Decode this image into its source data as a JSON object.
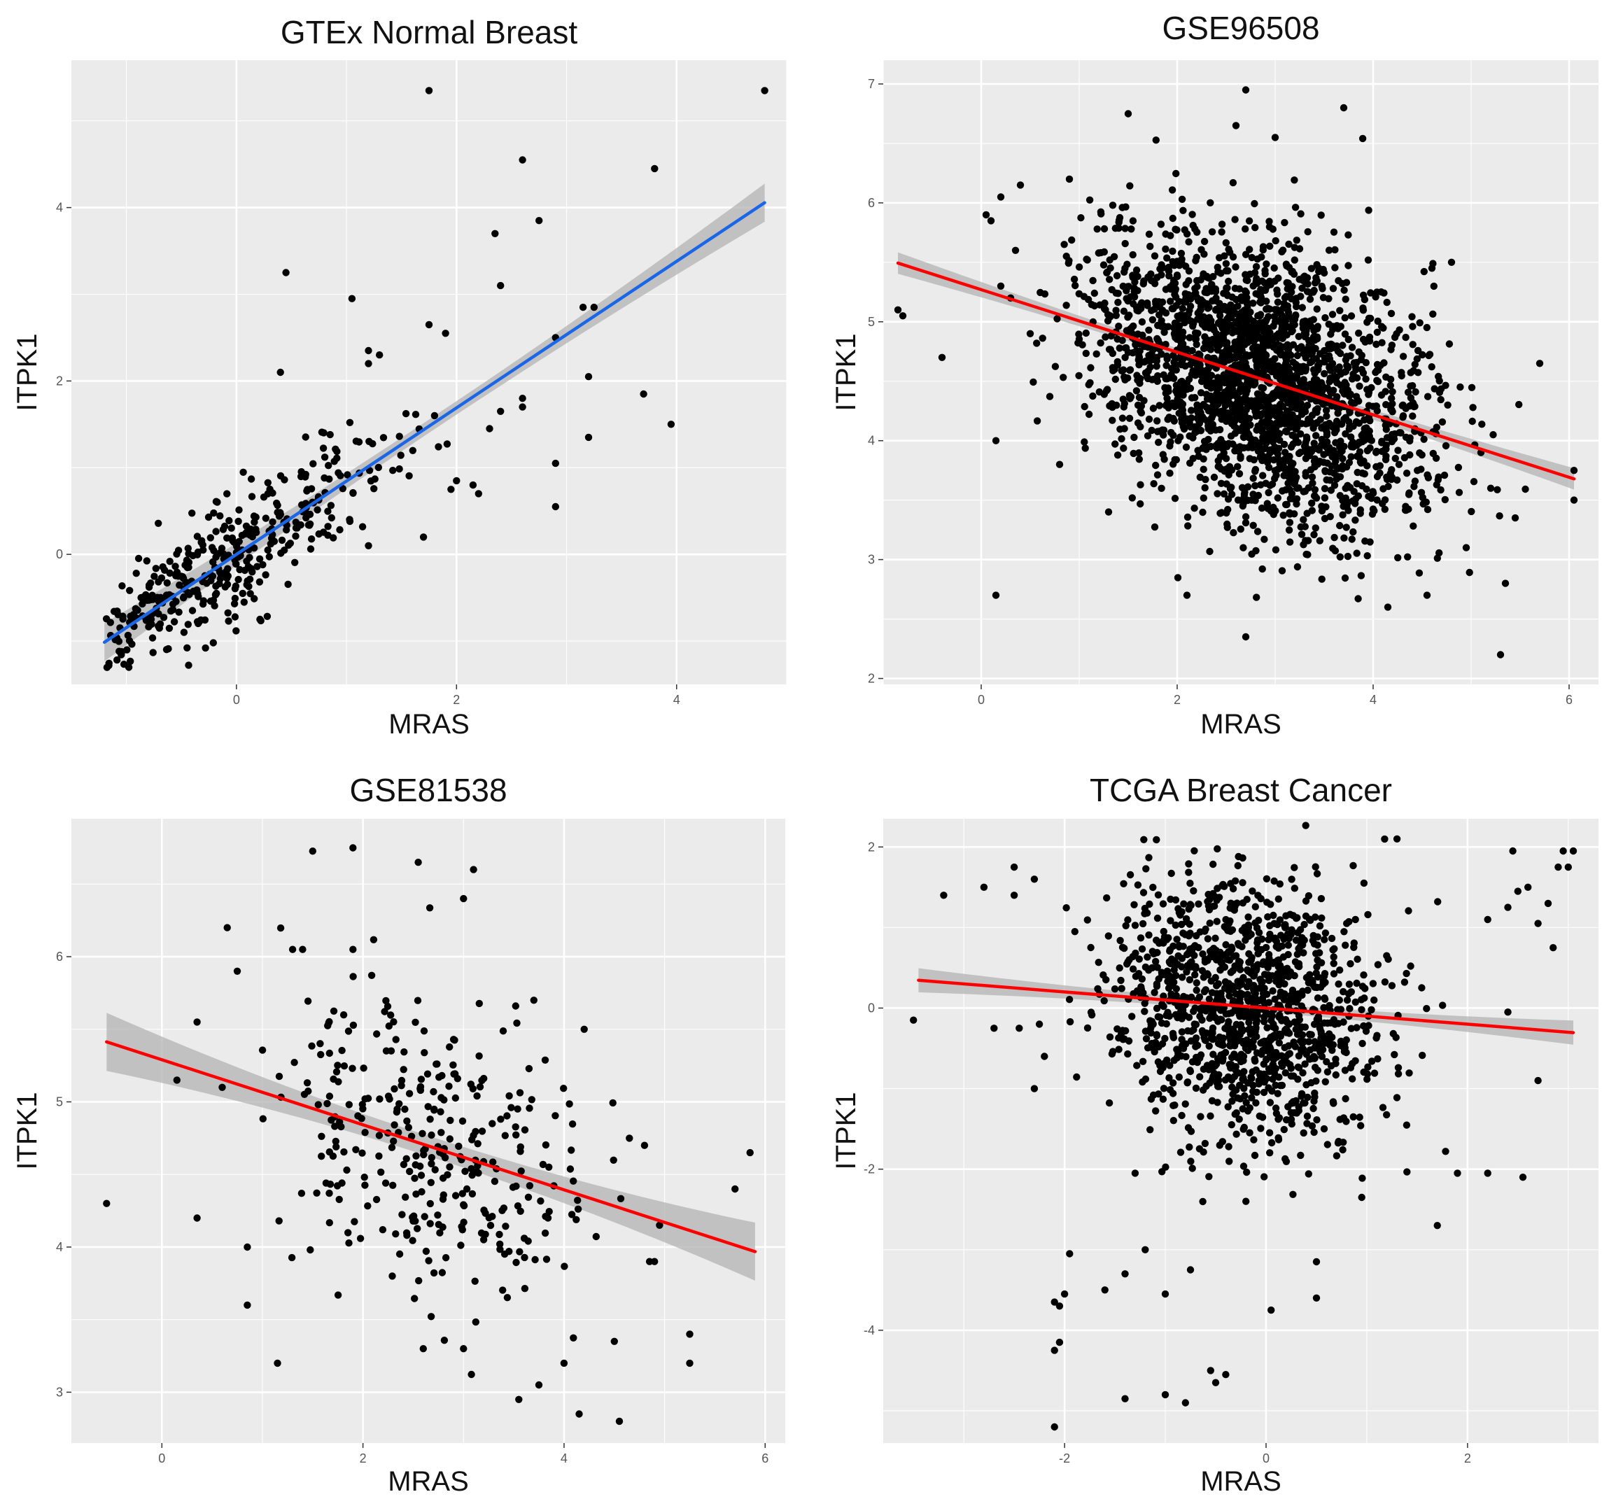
{
  "figure": {
    "panel_count": 4,
    "layout": "2x2 grid"
  },
  "chart_data": [
    {
      "type": "scatter",
      "title": "GTEx Normal Breast",
      "xlabel": "MRAS",
      "ylabel": "ITPK1",
      "xlim": [
        -1.5,
        5.0
      ],
      "ylim": [
        -1.5,
        5.7
      ],
      "x_ticks": [
        0,
        2,
        4
      ],
      "y_ticks": [
        0,
        2,
        4
      ],
      "x_tick_labels": [
        "0",
        "2",
        "4"
      ],
      "y_tick_labels": [
        "0",
        "2",
        "4"
      ],
      "fit": {
        "x_start": -1.2,
        "x_end": 4.8,
        "slope": 0.845,
        "intercept": 0.0,
        "band_halfwidth": 0.22
      },
      "fit_color": "#1a66e6",
      "cloud": {
        "n": 380,
        "x_mean": -0.25,
        "x_sd": 0.85,
        "x_min": -1.2,
        "x_max": 2.2,
        "resid_sd": 0.35
      },
      "points": [
        [
          1.75,
          5.35
        ],
        [
          4.8,
          5.35
        ],
        [
          2.6,
          4.55
        ],
        [
          3.8,
          4.45
        ],
        [
          2.75,
          3.85
        ],
        [
          2.35,
          3.7
        ],
        [
          0.45,
          3.25
        ],
        [
          2.4,
          3.1
        ],
        [
          1.05,
          2.95
        ],
        [
          3.15,
          2.85
        ],
        [
          3.25,
          2.85
        ],
        [
          1.75,
          2.65
        ],
        [
          1.9,
          2.55
        ],
        [
          2.9,
          2.5
        ],
        [
          1.2,
          2.35
        ],
        [
          1.3,
          2.3
        ],
        [
          0.4,
          2.1
        ],
        [
          1.2,
          2.2
        ],
        [
          3.2,
          2.05
        ],
        [
          3.7,
          1.85
        ],
        [
          2.6,
          1.8
        ],
        [
          2.6,
          1.7
        ],
        [
          2.4,
          1.65
        ],
        [
          1.8,
          1.6
        ],
        [
          3.95,
          1.5
        ],
        [
          3.2,
          1.35
        ],
        [
          2.9,
          1.05
        ],
        [
          1.7,
          0.2
        ],
        [
          2.9,
          0.55
        ],
        [
          1.2,
          0.1
        ],
        [
          2.15,
          0.8
        ],
        [
          2.2,
          0.7
        ],
        [
          2.0,
          0.85
        ],
        [
          1.95,
          0.75
        ],
        [
          2.3,
          1.45
        ]
      ]
    },
    {
      "type": "scatter",
      "title": "GSE96508",
      "xlabel": "MRAS",
      "ylabel": "ITPK1",
      "xlim": [
        -1.0,
        6.3
      ],
      "ylim": [
        1.95,
        7.2
      ],
      "x_ticks": [
        0,
        2,
        4,
        6
      ],
      "y_ticks": [
        2,
        3,
        4,
        5,
        6,
        7
      ],
      "x_tick_labels": [
        "0",
        "2",
        "4",
        "6"
      ],
      "y_tick_labels": [
        "2",
        "3",
        "4",
        "5",
        "6",
        "7"
      ],
      "fit": {
        "x_start": -0.85,
        "x_end": 6.05,
        "slope": -0.263,
        "intercept": 5.27,
        "band_halfwidth": 0.09
      },
      "fit_color": "#ff0000",
      "cloud": {
        "n": 2400,
        "x_mean": 2.8,
        "x_sd": 0.85,
        "x_min": 0.5,
        "x_max": 5.6,
        "resid_sd": 0.55
      },
      "points": [
        [
          2.7,
          6.95
        ],
        [
          3.7,
          6.8
        ],
        [
          1.5,
          6.75
        ],
        [
          3.0,
          6.55
        ],
        [
          2.6,
          6.65
        ],
        [
          -0.85,
          5.1
        ],
        [
          -0.8,
          5.05
        ],
        [
          -0.4,
          4.7
        ],
        [
          0.05,
          5.9
        ],
        [
          0.1,
          5.85
        ],
        [
          0.2,
          6.05
        ],
        [
          0.4,
          6.15
        ],
        [
          0.35,
          5.6
        ],
        [
          0.15,
          4.0
        ],
        [
          0.15,
          2.7
        ],
        [
          0.8,
          3.8
        ],
        [
          1.3,
          3.4
        ],
        [
          2.7,
          2.35
        ],
        [
          5.3,
          2.2
        ],
        [
          5.35,
          2.8
        ],
        [
          4.15,
          2.6
        ],
        [
          6.05,
          3.75
        ],
        [
          6.05,
          3.5
        ],
        [
          5.7,
          4.65
        ],
        [
          4.8,
          5.5
        ],
        [
          4.6,
          5.45
        ],
        [
          0.9,
          6.2
        ],
        [
          0.5,
          4.9
        ],
        [
          0.3,
          5.2
        ],
        [
          0.2,
          5.3
        ],
        [
          4.95,
          3.1
        ],
        [
          5.45,
          3.35
        ],
        [
          5.2,
          3.6
        ],
        [
          5.1,
          3.9
        ],
        [
          4.55,
          2.7
        ],
        [
          2.1,
          2.7
        ]
      ]
    },
    {
      "type": "scatter",
      "title": "GSE81538",
      "xlabel": "MRAS",
      "ylabel": "ITPK1",
      "xlim": [
        -0.9,
        6.2
      ],
      "ylim": [
        2.65,
        6.95
      ],
      "x_ticks": [
        0,
        2,
        4,
        6
      ],
      "y_ticks": [
        3,
        4,
        5,
        6
      ],
      "x_tick_labels": [
        "0",
        "2",
        "4",
        "6"
      ],
      "y_tick_labels": [
        "3",
        "4",
        "5",
        "6"
      ],
      "fit": {
        "x_start": -0.55,
        "x_end": 5.9,
        "slope": -0.224,
        "intercept": 5.29,
        "band_halfwidth": 0.2
      },
      "fit_color": "#ff0000",
      "cloud": {
        "n": 330,
        "x_mean": 2.7,
        "x_sd": 0.8,
        "x_min": 1.0,
        "x_max": 4.6,
        "resid_sd": 0.55
      },
      "points": [
        [
          1.9,
          6.75
        ],
        [
          2.55,
          6.65
        ],
        [
          3.1,
          6.6
        ],
        [
          3.0,
          6.4
        ],
        [
          0.65,
          6.2
        ],
        [
          0.75,
          5.9
        ],
        [
          1.3,
          6.05
        ],
        [
          1.4,
          6.05
        ],
        [
          1.9,
          6.05
        ],
        [
          -0.55,
          4.3
        ],
        [
          0.35,
          4.2
        ],
        [
          0.35,
          5.55
        ],
        [
          0.15,
          5.15
        ],
        [
          0.6,
          5.1
        ],
        [
          0.85,
          3.6
        ],
        [
          0.85,
          4.0
        ],
        [
          1.15,
          3.2
        ],
        [
          3.55,
          2.95
        ],
        [
          3.75,
          3.05
        ],
        [
          4.15,
          2.85
        ],
        [
          4.55,
          2.8
        ],
        [
          5.25,
          3.4
        ],
        [
          5.25,
          3.2
        ],
        [
          5.85,
          4.65
        ],
        [
          5.7,
          4.4
        ],
        [
          4.95,
          4.15
        ],
        [
          4.8,
          4.7
        ],
        [
          4.65,
          4.75
        ],
        [
          4.2,
          5.5
        ],
        [
          3.7,
          5.7
        ],
        [
          4.5,
          3.35
        ],
        [
          3.0,
          3.3
        ],
        [
          2.6,
          3.3
        ],
        [
          4.0,
          3.2
        ],
        [
          4.85,
          3.9
        ],
        [
          4.9,
          3.9
        ]
      ]
    },
    {
      "type": "scatter",
      "title": "TCGA Breast Cancer",
      "xlabel": "MRAS",
      "ylabel": "ITPK1",
      "xlim": [
        -3.8,
        3.3
      ],
      "ylim": [
        -5.4,
        2.35
      ],
      "x_ticks": [
        -2,
        0,
        2
      ],
      "y_ticks": [
        -4,
        -2,
        0,
        2
      ],
      "x_tick_labels": [
        "-2",
        "0",
        "2"
      ],
      "y_tick_labels": [
        "-4",
        "-2",
        "0",
        "2"
      ],
      "fit": {
        "x_start": -3.45,
        "x_end": 3.05,
        "slope": -0.1,
        "intercept": 0.0,
        "band_halfwidth": 0.15
      },
      "fit_color": "#ff0000",
      "cloud": {
        "n": 1300,
        "x_mean": -0.2,
        "x_sd": 0.65,
        "x_min": -2.0,
        "x_max": 1.8,
        "resid_sd": 0.8
      },
      "points": [
        [
          -3.5,
          -0.15
        ],
        [
          -3.2,
          1.4
        ],
        [
          -2.8,
          1.5
        ],
        [
          -2.5,
          1.75
        ],
        [
          -2.5,
          1.4
        ],
        [
          -2.3,
          1.6
        ],
        [
          -2.7,
          -0.25
        ],
        [
          -2.45,
          -0.25
        ],
        [
          -2.25,
          -0.2
        ],
        [
          -2.3,
          -1.0
        ],
        [
          -2.2,
          -0.6
        ],
        [
          -2.1,
          -3.65
        ],
        [
          -2.05,
          -3.7
        ],
        [
          -2.0,
          -3.55
        ],
        [
          -1.95,
          -3.05
        ],
        [
          -2.1,
          -4.25
        ],
        [
          -2.05,
          -4.15
        ],
        [
          -2.1,
          -5.2
        ],
        [
          -1.6,
          -3.5
        ],
        [
          -1.4,
          -3.3
        ],
        [
          -1.2,
          -3.0
        ],
        [
          -1.0,
          -3.55
        ],
        [
          -0.75,
          -3.25
        ],
        [
          -1.4,
          -4.85
        ],
        [
          -1.0,
          -4.8
        ],
        [
          -0.8,
          -4.9
        ],
        [
          -0.55,
          -4.5
        ],
        [
          -0.5,
          -4.65
        ],
        [
          -0.4,
          -4.55
        ],
        [
          0.05,
          -3.75
        ],
        [
          0.5,
          -3.15
        ],
        [
          0.5,
          -3.6
        ],
        [
          1.3,
          2.1
        ],
        [
          2.45,
          1.95
        ],
        [
          2.95,
          1.95
        ],
        [
          3.05,
          1.95
        ],
        [
          2.9,
          1.75
        ],
        [
          3.0,
          1.75
        ],
        [
          2.6,
          1.5
        ],
        [
          2.5,
          1.45
        ],
        [
          2.8,
          1.3
        ],
        [
          2.4,
          1.25
        ],
        [
          2.2,
          1.1
        ],
        [
          2.7,
          1.05
        ],
        [
          2.85,
          0.75
        ],
        [
          2.4,
          -0.05
        ],
        [
          2.7,
          -0.9
        ],
        [
          2.2,
          -2.05
        ],
        [
          2.55,
          -2.1
        ],
        [
          1.9,
          -2.05
        ],
        [
          1.7,
          -2.7
        ],
        [
          -0.2,
          -2.4
        ],
        [
          -1.3,
          -2.05
        ],
        [
          0.95,
          -2.35
        ]
      ]
    }
  ]
}
